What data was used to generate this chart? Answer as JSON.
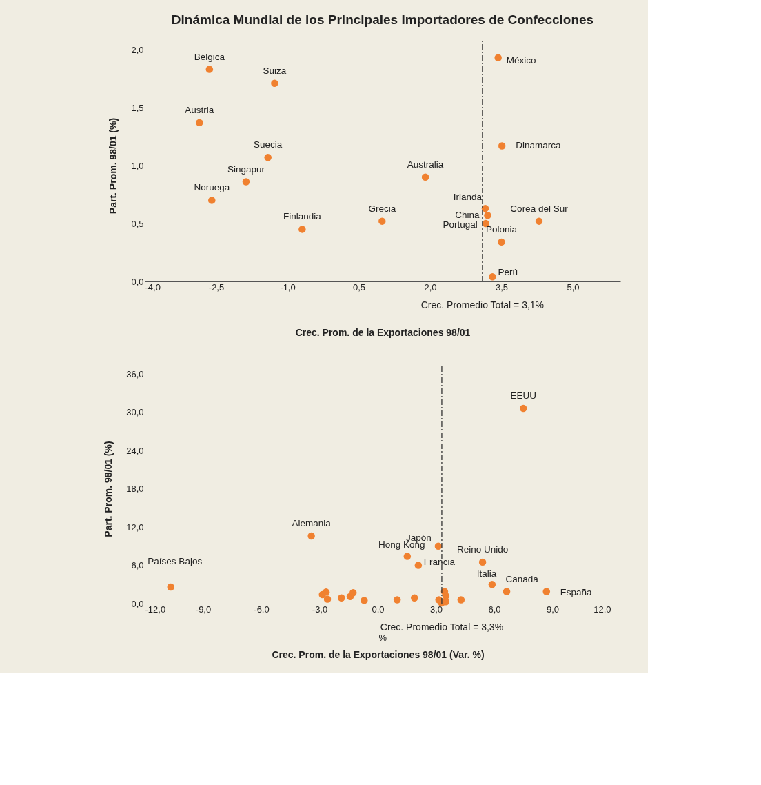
{
  "chart_data": [
    {
      "type": "scatter",
      "title": "Dinámica Mundial de los Principales Importadores de Confecciones",
      "xlabel": "Crec. Prom. de la Exportaciones 98/01",
      "ylabel": "Part. Prom. 98/01 (%)",
      "marker": "circle",
      "grid": false,
      "legend": false,
      "xlim": [
        -4.0,
        6.0
      ],
      "ylim": [
        0.0,
        2.0
      ],
      "xticks": [
        {
          "value": -4.0,
          "label": "-4,0"
        },
        {
          "value": -2.5,
          "label": "-2,5"
        },
        {
          "value": -1.0,
          "label": "-1,0"
        },
        {
          "value": 0.5,
          "label": "0,5"
        },
        {
          "value": 2.0,
          "label": "2,0"
        },
        {
          "value": 3.5,
          "label": "3,5"
        },
        {
          "value": 5.0,
          "label": "5,0"
        }
      ],
      "yticks": [
        {
          "value": 0.0,
          "label": "0,0"
        },
        {
          "value": 0.5,
          "label": "0,5"
        },
        {
          "value": 1.0,
          "label": "1,0"
        },
        {
          "value": 1.5,
          "label": "1,5"
        },
        {
          "value": 2.0,
          "label": "2,0"
        }
      ],
      "series": [
        {
          "color": "#f08130",
          "x": [
            -2.64,
            -1.27,
            -2.85,
            -1.41,
            -1.87,
            -2.59,
            -0.69,
            0.99,
            1.9,
            3.43,
            3.51,
            3.16,
            3.21,
            3.17,
            4.29,
            3.5,
            3.31
          ],
          "values": [
            1.83,
            1.71,
            1.37,
            1.07,
            0.86,
            0.7,
            0.45,
            0.52,
            0.9,
            1.93,
            1.17,
            0.63,
            0.57,
            0.5,
            0.52,
            0.34,
            0.04
          ]
        }
      ],
      "ref_lines": [
        {
          "axis": "x",
          "value": 3.1,
          "label": "Crec. Promedio Total = 3,1%",
          "color": "#333333",
          "line_style": "dashdot"
        }
      ],
      "annotations": [
        {
          "text": "Bélgica",
          "x": -2.64,
          "y": 1.83
        },
        {
          "text": "Suiza",
          "x": -1.27,
          "y": 1.71
        },
        {
          "text": "Austria",
          "x": -2.85,
          "y": 1.37
        },
        {
          "text": "Suecia",
          "x": -1.41,
          "y": 1.07
        },
        {
          "text": "Singapur",
          "x": -1.87,
          "y": 0.86
        },
        {
          "text": "Noruega",
          "x": -2.59,
          "y": 0.7
        },
        {
          "text": "Finlandia",
          "x": -0.69,
          "y": 0.45
        },
        {
          "text": "Grecia",
          "x": 0.99,
          "y": 0.52
        },
        {
          "text": "Australia",
          "x": 1.9,
          "y": 0.9
        },
        {
          "text": "México",
          "x": 3.43,
          "y": 1.93
        },
        {
          "text": "Dinamarca",
          "x": 3.51,
          "y": 1.17
        },
        {
          "text": "Irlanda",
          "x": 3.16,
          "y": 0.63
        },
        {
          "text": "China",
          "x": 3.21,
          "y": 0.57
        },
        {
          "text": "Portugal",
          "x": 3.17,
          "y": 0.5
        },
        {
          "text": "Corea del Sur",
          "x": 4.29,
          "y": 0.52
        },
        {
          "text": "Polonia",
          "x": 3.5,
          "y": 0.34
        },
        {
          "text": "Perú",
          "x": 3.31,
          "y": 0.04
        }
      ]
    },
    {
      "type": "scatter",
      "xlabel": "Crec. Prom. de la Exportaciones 98/01 (Var. %)",
      "ylabel": "Part. Prom. 98/01 (%)",
      "marker": "circle",
      "grid": false,
      "legend": false,
      "xlim": [
        -12.0,
        12.0
      ],
      "ylim": [
        0.0,
        36.0
      ],
      "xticks": [
        {
          "value": -12.0,
          "label": "-12,0"
        },
        {
          "value": -9.0,
          "label": "-9,0"
        },
        {
          "value": -6.0,
          "label": "-6,0"
        },
        {
          "value": -3.0,
          "label": "-3,0"
        },
        {
          "value": 0.0,
          "label": "0,0"
        },
        {
          "value": 3.0,
          "label": "3,0"
        },
        {
          "value": 6.0,
          "label": "6,0"
        },
        {
          "value": 9.0,
          "label": "9,0"
        },
        {
          "value": 12.0,
          "label": "12,0"
        }
      ],
      "yticks": [
        {
          "value": 0.0,
          "label": "0,0"
        },
        {
          "value": 6.0,
          "label": "6,0"
        },
        {
          "value": 12.0,
          "label": "12,0"
        },
        {
          "value": 18.0,
          "label": "18,0"
        },
        {
          "value": 24.0,
          "label": "24,0"
        },
        {
          "value": 30.0,
          "label": "30,0"
        },
        {
          "value": 36.0,
          "label": "36,0"
        }
      ],
      "series": [
        {
          "color": "#f08130",
          "x": [
            -10.66,
            -3.42,
            1.52,
            3.12,
            2.09,
            5.4,
            7.5,
            5.89,
            6.64,
            8.69,
            -2.85,
            -2.66,
            -2.59,
            -1.87,
            -1.42,
            -1.27,
            -0.7,
            1.0,
            1.89,
            3.15,
            3.44,
            3.51,
            3.51,
            3.29,
            4.29
          ],
          "values": [
            2.6,
            10.6,
            7.4,
            9.0,
            6.0,
            6.5,
            30.6,
            3.0,
            1.9,
            1.9,
            1.4,
            1.8,
            0.7,
            0.9,
            1.1,
            1.7,
            0.5,
            0.6,
            0.9,
            0.6,
            1.9,
            1.2,
            0.3,
            0.1,
            0.6
          ]
        }
      ],
      "ref_lines": [
        {
          "axis": "x",
          "value": 3.3,
          "label": "Crec. Promedio Total = 3,3%",
          "color": "#333333",
          "line_style": "dashdot"
        }
      ],
      "annotations": [
        {
          "text": "Países Bajos",
          "x": -10.66,
          "y": 2.6
        },
        {
          "text": "Alemania",
          "x": -3.42,
          "y": 10.6
        },
        {
          "text": "Hong Kong",
          "x": 1.52,
          "y": 7.4
        },
        {
          "text": "Japón",
          "x": 3.12,
          "y": 9.0
        },
        {
          "text": "Francia",
          "x": 2.09,
          "y": 6.0
        },
        {
          "text": "Reino Unido",
          "x": 5.4,
          "y": 6.5
        },
        {
          "text": "EEUU",
          "x": 7.5,
          "y": 30.6
        },
        {
          "text": "Italia",
          "x": 5.89,
          "y": 3.0
        },
        {
          "text": "Canada",
          "x": 6.64,
          "y": 1.9
        },
        {
          "text": "España",
          "x": 8.69,
          "y": 1.9
        },
        "%"
      ]
    }
  ]
}
